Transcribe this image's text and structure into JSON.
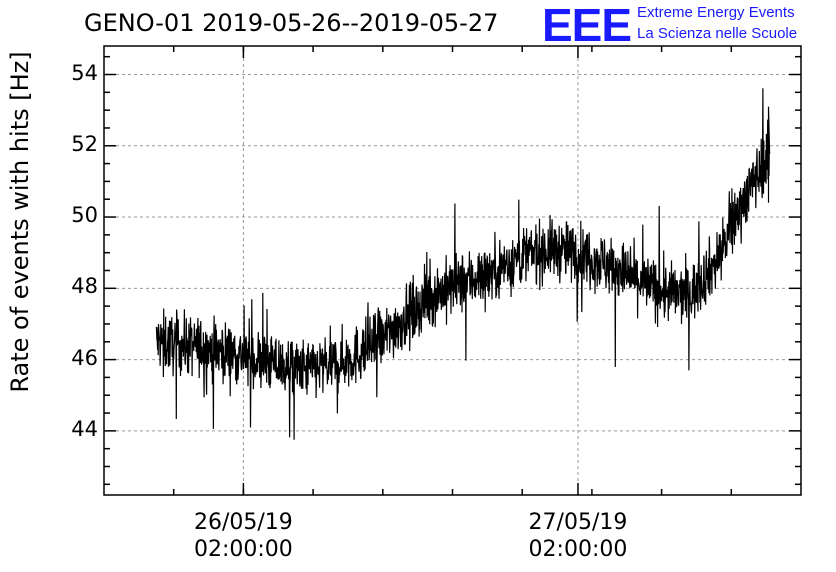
{
  "chart_data": {
    "type": "line",
    "title": "GENO-01 2019-05-26--2019-05-27",
    "ylabel": "Rate of events with hits [Hz]",
    "xlabel": "",
    "ylim": [
      42.2,
      54.8
    ],
    "xlim": [
      "2019-05-25T16:00:00",
      "2019-05-27T18:00:00"
    ],
    "grid": true,
    "yticks": [
      44,
      46,
      48,
      50,
      52,
      54
    ],
    "xticks": [
      {
        "date": "26/05/19",
        "time": "02:00:00",
        "x": "2019-05-26T02:00:00"
      },
      {
        "date": "27/05/19",
        "time": "02:00:00",
        "x": "2019-05-27T02:00:00"
      }
    ],
    "data_start": "2019-05-25T19:45:00",
    "data_end": "2019-05-27T15:45:00",
    "series": [
      {
        "color": "#000000",
        "x": [
          "2019-05-25T20:00:00",
          "2019-05-25T22:00:00",
          "2019-05-26T00:00:00",
          "2019-05-26T02:00:00",
          "2019-05-26T04:00:00",
          "2019-05-26T06:00:00",
          "2019-05-26T08:00:00",
          "2019-05-26T10:00:00",
          "2019-05-26T12:00:00",
          "2019-05-26T14:00:00",
          "2019-05-26T16:00:00",
          "2019-05-26T18:00:00",
          "2019-05-26T20:00:00",
          "2019-05-26T22:00:00",
          "2019-05-27T00:00:00",
          "2019-05-27T02:00:00",
          "2019-05-27T04:00:00",
          "2019-05-27T06:00:00",
          "2019-05-27T08:00:00",
          "2019-05-27T10:00:00",
          "2019-05-27T12:00:00",
          "2019-05-27T14:00:00",
          "2019-05-27T15:30:00"
        ],
        "values": [
          46.5,
          46.4,
          46.3,
          46.1,
          45.9,
          45.7,
          45.8,
          46.1,
          46.6,
          47.3,
          47.9,
          48.2,
          48.5,
          48.9,
          49.1,
          49.0,
          48.7,
          48.3,
          47.9,
          47.8,
          48.8,
          50.6,
          51.6
        ]
      }
    ],
    "trace_end": {
      "x": "2019-05-27T15:40:00",
      "values": [
        53.1,
        52.7,
        51.5,
        50.4
      ]
    }
  },
  "logo": {
    "mark": "EEE",
    "line1": "Extreme Energy Events",
    "line2": "La Scienza nelle Scuole"
  }
}
